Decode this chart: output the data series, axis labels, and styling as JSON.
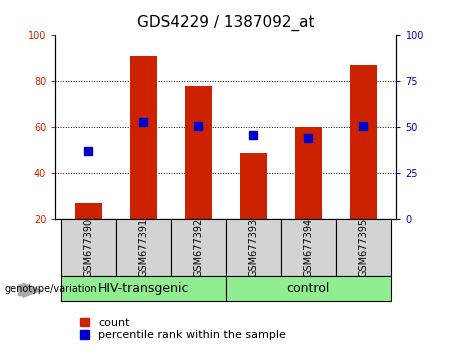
{
  "title": "GDS4229 / 1387092_at",
  "samples": [
    "GSM677390",
    "GSM677391",
    "GSM677392",
    "GSM677393",
    "GSM677394",
    "GSM677395"
  ],
  "count_values": [
    27,
    91,
    78,
    49,
    60,
    87
  ],
  "percentile_values": [
    37,
    53,
    51,
    46,
    44,
    51
  ],
  "ylim_left": [
    20,
    100
  ],
  "ylim_right": [
    0,
    100
  ],
  "yticks_left": [
    20,
    40,
    60,
    80,
    100
  ],
  "yticks_right": [
    0,
    25,
    50,
    75,
    100
  ],
  "bar_color": "#cc2200",
  "dot_color": "#0000cc",
  "background_color": "#ffffff",
  "plot_bg_color": "#ffffff",
  "group_labels": [
    "HIV-transgenic",
    "control"
  ],
  "group_color": "#90ee90",
  "group_label_text": "genotype/variation",
  "legend_count_label": "count",
  "legend_percentile_label": "percentile rank within the sample",
  "bar_width": 0.5,
  "dot_size": 30,
  "left_tick_color": "#cc2200",
  "right_tick_color": "#0000cc",
  "title_fontsize": 11,
  "tick_label_fontsize": 7,
  "sample_label_fontsize": 7,
  "group_label_fontsize": 9,
  "legend_fontsize": 8
}
